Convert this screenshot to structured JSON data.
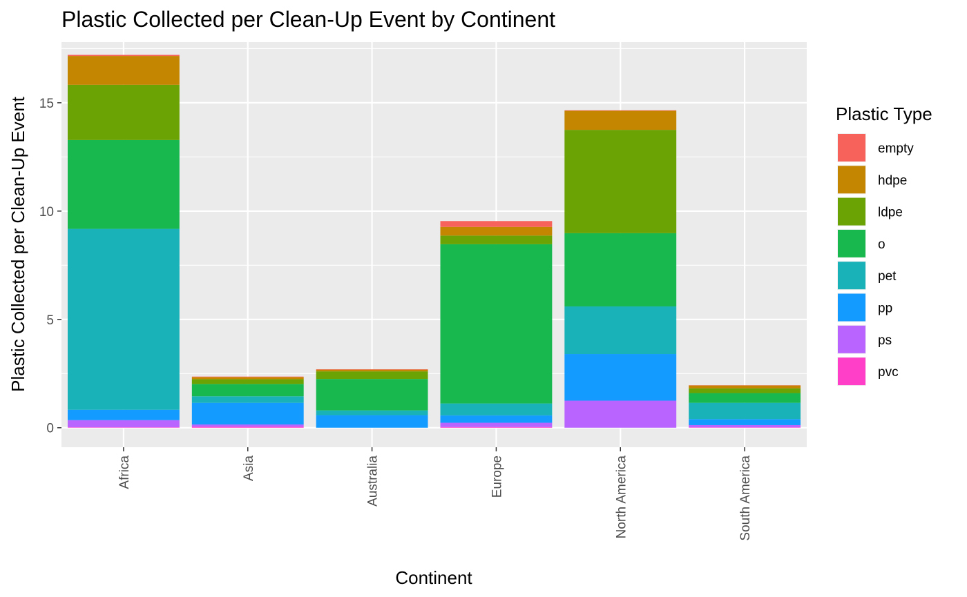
{
  "chart_data": {
    "type": "bar",
    "stacked": true,
    "title": "Plastic Collected per Clean-Up Event by Continent",
    "xlabel": "Continent",
    "ylabel": "Plastic Collected per Clean-Up Event",
    "ylim": [
      -0.9,
      17.8
    ],
    "y_ticks": [
      0,
      5,
      10,
      15
    ],
    "grid": true,
    "legend_placement": "right",
    "legend_title": "Plastic Type",
    "categories": [
      "Africa",
      "Asia",
      "Australia",
      "Europe",
      "North America",
      "South America"
    ],
    "series": [
      {
        "name": "pvc",
        "color": "#FF3FC8",
        "values": [
          0.02,
          0.05,
          0.0,
          0.03,
          0.0,
          0.02
        ]
      },
      {
        "name": "ps",
        "color": "#B964FF",
        "values": [
          0.33,
          0.1,
          0.0,
          0.2,
          1.25,
          0.1
        ]
      },
      {
        "name": "pp",
        "color": "#149BFF",
        "values": [
          0.48,
          1.0,
          0.58,
          0.34,
          2.15,
          0.28
        ]
      },
      {
        "name": "pet",
        "color": "#19B2B9",
        "values": [
          8.35,
          0.3,
          0.22,
          0.55,
          2.2,
          0.75
        ]
      },
      {
        "name": "o",
        "color": "#19B84F",
        "values": [
          4.1,
          0.57,
          1.45,
          7.35,
          3.38,
          0.45
        ]
      },
      {
        "name": "ldpe",
        "color": "#6BA305",
        "values": [
          2.55,
          0.22,
          0.35,
          0.4,
          4.77,
          0.22
        ]
      },
      {
        "name": "hdpe",
        "color": "#C48500",
        "values": [
          1.33,
          0.1,
          0.08,
          0.4,
          0.88,
          0.13
        ]
      },
      {
        "name": "empty",
        "color": "#F7625B",
        "values": [
          0.05,
          0.02,
          0.02,
          0.27,
          0.02,
          0.01
        ]
      }
    ],
    "legend_order": [
      "empty",
      "hdpe",
      "ldpe",
      "o",
      "pet",
      "pp",
      "ps",
      "pvc"
    ]
  }
}
